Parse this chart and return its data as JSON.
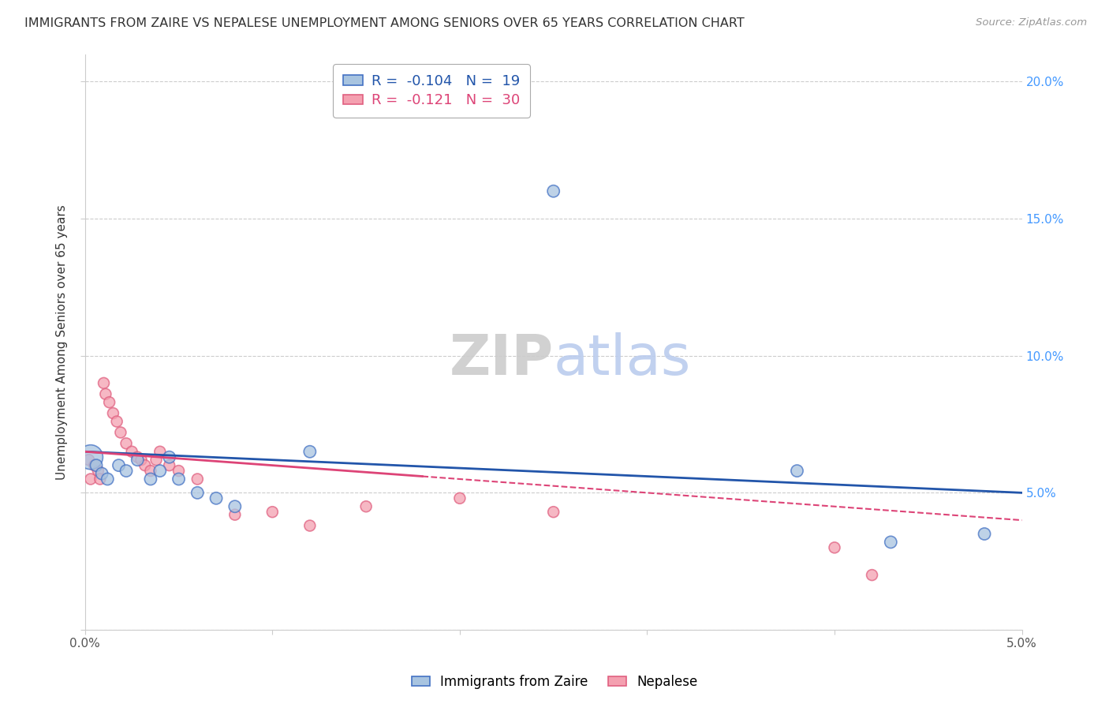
{
  "title": "IMMIGRANTS FROM ZAIRE VS NEPALESE UNEMPLOYMENT AMONG SENIORS OVER 65 YEARS CORRELATION CHART",
  "source": "Source: ZipAtlas.com",
  "ylabel": "Unemployment Among Seniors over 65 years",
  "legend_labels": [
    "Immigrants from Zaire",
    "Nepalese"
  ],
  "r_zaire": -0.104,
  "n_zaire": 19,
  "r_nepalese": -0.121,
  "n_nepalese": 30,
  "xlim": [
    0.0,
    0.05
  ],
  "ylim": [
    0.0,
    0.21
  ],
  "xticks": [
    0.0,
    0.01,
    0.02,
    0.03,
    0.04,
    0.05
  ],
  "xticklabels": [
    "0.0%",
    "",
    "",
    "",
    "",
    "5.0%"
  ],
  "yticks": [
    0.0,
    0.05,
    0.1,
    0.15,
    0.2
  ],
  "yticklabels_right": [
    "",
    "5.0%",
    "10.0%",
    "15.0%",
    "20.0%"
  ],
  "color_zaire": "#a8c4e0",
  "color_nepalese": "#f4a0b0",
  "edge_color_zaire": "#4472c4",
  "edge_color_nepalese": "#e06080",
  "trend_color_zaire": "#2255aa",
  "trend_color_nepalese": "#dd4477",
  "background_color": "#ffffff",
  "watermark_zip": "ZIP",
  "watermark_atlas": "atlas",
  "zaire_points": [
    [
      0.0003,
      0.063
    ],
    [
      0.0006,
      0.06
    ],
    [
      0.0009,
      0.057
    ],
    [
      0.0012,
      0.055
    ],
    [
      0.0018,
      0.06
    ],
    [
      0.0022,
      0.058
    ],
    [
      0.0028,
      0.062
    ],
    [
      0.0035,
      0.055
    ],
    [
      0.004,
      0.058
    ],
    [
      0.0045,
      0.063
    ],
    [
      0.005,
      0.055
    ],
    [
      0.006,
      0.05
    ],
    [
      0.007,
      0.048
    ],
    [
      0.008,
      0.045
    ],
    [
      0.012,
      0.065
    ],
    [
      0.025,
      0.16
    ],
    [
      0.038,
      0.058
    ],
    [
      0.043,
      0.032
    ],
    [
      0.048,
      0.035
    ]
  ],
  "nepalese_points": [
    [
      0.0002,
      0.062
    ],
    [
      0.0003,
      0.055
    ],
    [
      0.0005,
      0.06
    ],
    [
      0.0007,
      0.058
    ],
    [
      0.0008,
      0.055
    ],
    [
      0.001,
      0.09
    ],
    [
      0.0011,
      0.086
    ],
    [
      0.0013,
      0.083
    ],
    [
      0.0015,
      0.079
    ],
    [
      0.0017,
      0.076
    ],
    [
      0.0019,
      0.072
    ],
    [
      0.0022,
      0.068
    ],
    [
      0.0025,
      0.065
    ],
    [
      0.0028,
      0.063
    ],
    [
      0.003,
      0.062
    ],
    [
      0.0032,
      0.06
    ],
    [
      0.0035,
      0.058
    ],
    [
      0.0038,
      0.062
    ],
    [
      0.004,
      0.065
    ],
    [
      0.0045,
      0.06
    ],
    [
      0.005,
      0.058
    ],
    [
      0.006,
      0.055
    ],
    [
      0.008,
      0.042
    ],
    [
      0.01,
      0.043
    ],
    [
      0.012,
      0.038
    ],
    [
      0.015,
      0.045
    ],
    [
      0.02,
      0.048
    ],
    [
      0.025,
      0.043
    ],
    [
      0.04,
      0.03
    ],
    [
      0.042,
      0.02
    ]
  ]
}
